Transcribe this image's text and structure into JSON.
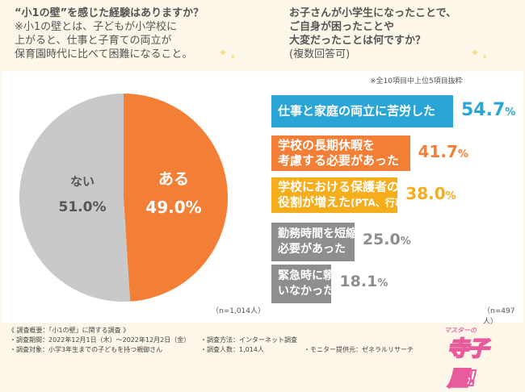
{
  "left_question": {
    "title": "“小1の壁”を感じた経験はありますか？",
    "definition_line1": "※小1の壁とは、子どもが小学校に",
    "definition_line2": "上がると、仕事と子育ての両立が",
    "definition_line3": "保育園時代に比べて困難になること。"
  },
  "right_question": {
    "line1": "お子さんが小学生になったことで、",
    "line2": "ご自身が困ったことや",
    "line3": "大変だったことは何ですか？",
    "line4": "(複数回答可)"
  },
  "note": "※全10項目中上位5項目抜粋",
  "left_n": "（n=1,014人）",
  "right_n": "（n=497人）",
  "colors": {
    "orange": "#f37f36",
    "gray": "#c9c9c9",
    "blue": "#2aa6d6",
    "yellow": "#f5ad1c",
    "darkgray": "#8e8e8e"
  },
  "chart_data": [
    {
      "type": "pie",
      "title": "“小1の壁”を感じた経験はありますか？",
      "slices": [
        {
          "label": "ある",
          "value": 49.0,
          "display": "49.0%",
          "color": "#f37f36"
        },
        {
          "label": "ない",
          "value": 51.0,
          "display": "51.0%",
          "color": "#c9c9c9"
        }
      ]
    },
    {
      "type": "bar",
      "orientation": "horizontal",
      "title": "お子さんが小学生になったことで、ご自身が困ったことや大変だったことは何ですか？",
      "xlim": [
        0,
        60
      ],
      "items": [
        {
          "line1": "仕事と家庭の両立に苦労した",
          "line2": "",
          "extra": "",
          "value": 54.7,
          "num": "54.7",
          "color": "#2aa6d6"
        },
        {
          "line1": "学校の長期休暇を",
          "line2": "考慮する必要があった",
          "extra": "",
          "value": 41.7,
          "num": "41.7",
          "color": "#f37f36"
        },
        {
          "line1": "学校における保護者の",
          "line2": "役割が増えた",
          "extra": "(PTA、行事など)",
          "value": 38.0,
          "num": "38.0",
          "color": "#f5ad1c"
        },
        {
          "line1": "勤務時間を短縮する",
          "line2": "必要があった",
          "extra": "",
          "value": 25.0,
          "num": "25.0",
          "color": "#8e8e8e"
        },
        {
          "line1": "緊急時に頼れる相手が",
          "line2": "いなかった",
          "extra": "",
          "value": 18.1,
          "num": "18.1",
          "color": "#8e8e8e"
        }
      ]
    }
  ],
  "survey": {
    "title": "《 調査概要：「小1の壁」に関する調査 》",
    "period": "・調査期間：2022年12月1日（木）〜2022年12月2日（金）",
    "target": "・調査対象：小学3年生までの子どもを持つ親御さん",
    "method": "・調査方法：インターネット調査",
    "count": "・調査人数：1,014人",
    "provider": "・モニター提供元：ゼネラルリサーチ"
  },
  "logo": {
    "small": "マスターの",
    "big": "寺子屋!"
  }
}
